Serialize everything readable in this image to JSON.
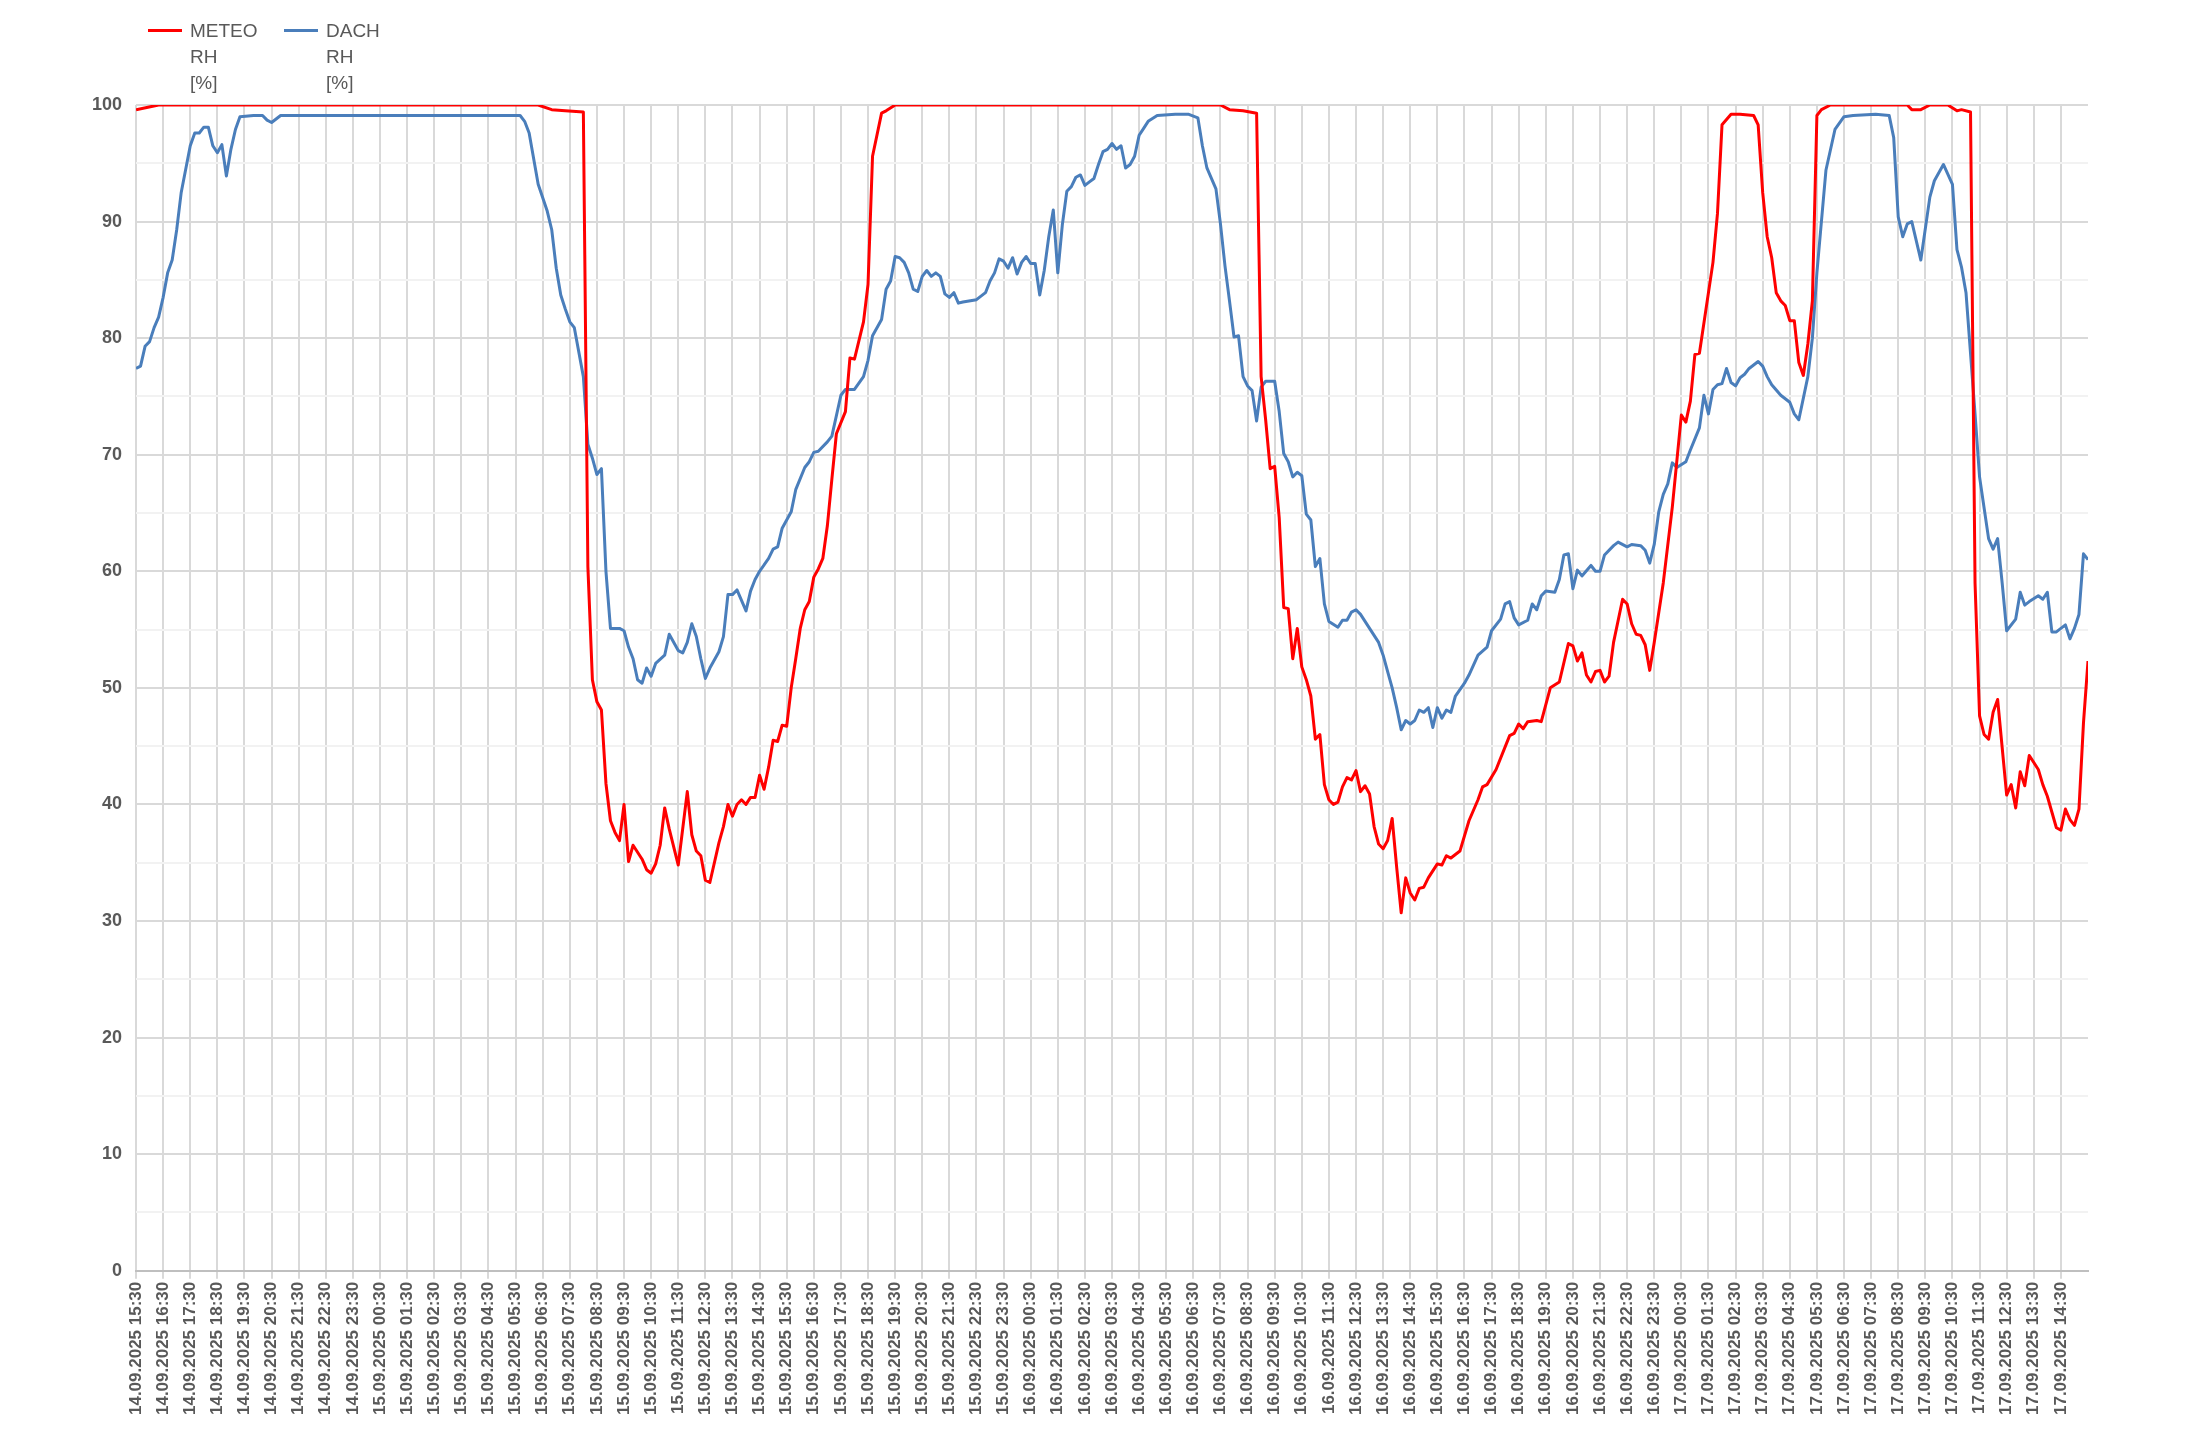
{
  "chart_data": {
    "type": "line",
    "legend": "top left",
    "grid": true,
    "xlim": [
      "2025-09-14T15:30",
      "2025-09-17T15:30"
    ],
    "xticks": [
      {
        "value": "2025-09-14T15:30",
        "label": "14.09.2025 15:30"
      },
      {
        "value": "2025-09-14T16:30",
        "label": "14.09.2025 16:30"
      },
      {
        "value": "2025-09-14T17:30",
        "label": "14.09.2025 17:30"
      },
      {
        "value": "2025-09-14T18:30",
        "label": "14.09.2025 18:30"
      },
      {
        "value": "2025-09-14T19:30",
        "label": "14.09.2025 19:30"
      },
      {
        "value": "2025-09-14T20:30",
        "label": "14.09.2025 20:30"
      },
      {
        "value": "2025-09-14T21:30",
        "label": "14.09.2025 21:30"
      },
      {
        "value": "2025-09-14T22:30",
        "label": "14.09.2025 22:30"
      },
      {
        "value": "2025-09-14T23:30",
        "label": "14.09.2025 23:30"
      },
      {
        "value": "2025-09-15T00:30",
        "label": "15.09.2025 00:30"
      },
      {
        "value": "2025-09-15T01:30",
        "label": "15.09.2025 01:30"
      },
      {
        "value": "2025-09-15T02:30",
        "label": "15.09.2025 02:30"
      },
      {
        "value": "2025-09-15T03:30",
        "label": "15.09.2025 03:30"
      },
      {
        "value": "2025-09-15T04:30",
        "label": "15.09.2025 04:30"
      },
      {
        "value": "2025-09-15T05:30",
        "label": "15.09.2025 05:30"
      },
      {
        "value": "2025-09-15T06:30",
        "label": "15.09.2025 06:30"
      },
      {
        "value": "2025-09-15T07:30",
        "label": "15.09.2025 07:30"
      },
      {
        "value": "2025-09-15T08:30",
        "label": "15.09.2025 08:30"
      },
      {
        "value": "2025-09-15T09:30",
        "label": "15.09.2025 09:30"
      },
      {
        "value": "2025-09-15T10:30",
        "label": "15.09.2025 10:30"
      },
      {
        "value": "2025-09-15T11:30",
        "label": "15.09.2025 11:30"
      },
      {
        "value": "2025-09-15T12:30",
        "label": "15.09.2025 12:30"
      },
      {
        "value": "2025-09-15T13:30",
        "label": "15.09.2025 13:30"
      },
      {
        "value": "2025-09-15T14:30",
        "label": "15.09.2025 14:30"
      },
      {
        "value": "2025-09-15T15:30",
        "label": "15.09.2025 15:30"
      },
      {
        "value": "2025-09-15T16:30",
        "label": "15.09.2025 16:30"
      },
      {
        "value": "2025-09-15T17:30",
        "label": "15.09.2025 17:30"
      },
      {
        "value": "2025-09-15T18:30",
        "label": "15.09.2025 18:30"
      },
      {
        "value": "2025-09-15T19:30",
        "label": "15.09.2025 19:30"
      },
      {
        "value": "2025-09-15T20:30",
        "label": "15.09.2025 20:30"
      },
      {
        "value": "2025-09-15T21:30",
        "label": "15.09.2025 21:30"
      },
      {
        "value": "2025-09-15T22:30",
        "label": "15.09.2025 22:30"
      },
      {
        "value": "2025-09-15T23:30",
        "label": "15.09.2025 23:30"
      },
      {
        "value": "2025-09-16T00:30",
        "label": "16.09.2025 00:30"
      },
      {
        "value": "2025-09-16T01:30",
        "label": "16.09.2025 01:30"
      },
      {
        "value": "2025-09-16T02:30",
        "label": "16.09.2025 02:30"
      },
      {
        "value": "2025-09-16T03:30",
        "label": "16.09.2025 03:30"
      },
      {
        "value": "2025-09-16T04:30",
        "label": "16.09.2025 04:30"
      },
      {
        "value": "2025-09-16T05:30",
        "label": "16.09.2025 05:30"
      },
      {
        "value": "2025-09-16T06:30",
        "label": "16.09.2025 06:30"
      },
      {
        "value": "2025-09-16T07:30",
        "label": "16.09.2025 07:30"
      },
      {
        "value": "2025-09-16T08:30",
        "label": "16.09.2025 08:30"
      },
      {
        "value": "2025-09-16T09:30",
        "label": "16.09.2025 09:30"
      },
      {
        "value": "2025-09-16T10:30",
        "label": "16.09.2025 10:30"
      },
      {
        "value": "2025-09-16T11:30",
        "label": "16.09.2025 11:30"
      },
      {
        "value": "2025-09-16T12:30",
        "label": "16.09.2025 12:30"
      },
      {
        "value": "2025-09-16T13:30",
        "label": "16.09.2025 13:30"
      },
      {
        "value": "2025-09-16T14:30",
        "label": "16.09.2025 14:30"
      },
      {
        "value": "2025-09-16T15:30",
        "label": "16.09.2025 15:30"
      },
      {
        "value": "2025-09-16T16:30",
        "label": "16.09.2025 16:30"
      },
      {
        "value": "2025-09-16T17:30",
        "label": "16.09.2025 17:30"
      },
      {
        "value": "2025-09-16T18:30",
        "label": "16.09.2025 18:30"
      },
      {
        "value": "2025-09-16T19:30",
        "label": "16.09.2025 19:30"
      },
      {
        "value": "2025-09-16T20:30",
        "label": "16.09.2025 20:30"
      },
      {
        "value": "2025-09-16T21:30",
        "label": "16.09.2025 21:30"
      },
      {
        "value": "2025-09-16T22:30",
        "label": "16.09.2025 22:30"
      },
      {
        "value": "2025-09-16T23:30",
        "label": "16.09.2025 23:30"
      },
      {
        "value": "2025-09-17T00:30",
        "label": "17.09.2025 00:30"
      },
      {
        "value": "2025-09-17T01:30",
        "label": "17.09.2025 01:30"
      },
      {
        "value": "2025-09-17T02:30",
        "label": "17.09.2025 02:30"
      },
      {
        "value": "2025-09-17T03:30",
        "label": "17.09.2025 03:30"
      },
      {
        "value": "2025-09-17T04:30",
        "label": "17.09.2025 04:30"
      },
      {
        "value": "2025-09-17T05:30",
        "label": "17.09.2025 05:30"
      },
      {
        "value": "2025-09-17T06:30",
        "label": "17.09.2025 06:30"
      },
      {
        "value": "2025-09-17T07:30",
        "label": "17.09.2025 07:30"
      },
      {
        "value": "2025-09-17T08:30",
        "label": "17.09.2025 08:30"
      },
      {
        "value": "2025-09-17T09:30",
        "label": "17.09.2025 09:30"
      },
      {
        "value": "2025-09-17T10:30",
        "label": "17.09.2025 10:30"
      },
      {
        "value": "2025-09-17T11:30",
        "label": "17.09.2025 11:30"
      },
      {
        "value": "2025-09-17T12:30",
        "label": "17.09.2025 12:30"
      },
      {
        "value": "2025-09-17T13:30",
        "label": "17.09.2025 13:30"
      },
      {
        "value": "2025-09-17T14:30",
        "label": "17.09.2025 14:30"
      }
    ],
    "ylim": [
      0,
      100
    ],
    "yticks": [
      0,
      {
        "value": 5,
        "label": null
      },
      10,
      {
        "value": 15,
        "label": null
      },
      20,
      {
        "value": 25,
        "label": null
      },
      30,
      {
        "value": 35,
        "label": null
      },
      40,
      {
        "value": 45,
        "label": null
      },
      50,
      {
        "value": 55,
        "label": null
      },
      60,
      {
        "value": 65,
        "label": null
      },
      70,
      {
        "value": 75,
        "label": null
      },
      80,
      {
        "value": 85,
        "label": null
      },
      90,
      {
        "value": 95,
        "label": null
      },
      100
    ],
    "series": [
      {
        "name": "METEO RH [%]",
        "color": "#ff0000",
        "x": [
          "2025-09-14T15:30",
          "2025-09-14T16:20",
          "2025-09-15T06:20",
          "2025-09-15T06:50",
          "2025-09-15T07:20",
          "2025-09-15T08:00",
          "2025-09-15T08:10",
          "2025-09-15T08:20",
          "2025-09-15T08:30",
          "2025-09-15T08:40",
          "2025-09-15T08:50",
          "2025-09-15T09:00",
          "2025-09-15T09:10",
          "2025-09-15T09:20",
          "2025-09-15T09:30",
          "2025-09-15T09:40",
          "2025-09-15T09:50",
          "2025-09-15T10:10",
          "2025-09-15T10:20",
          "2025-09-15T10:30",
          "2025-09-15T10:40",
          "2025-09-15T10:50",
          "2025-09-15T11:00",
          "2025-09-15T11:10",
          "2025-09-15T11:30",
          "2025-09-15T11:50",
          "2025-09-15T12:00",
          "2025-09-15T12:10",
          "2025-09-15T12:20",
          "2025-09-15T12:30",
          "2025-09-15T12:40",
          "2025-09-15T13:00",
          "2025-09-15T13:10",
          "2025-09-15T13:20",
          "2025-09-15T13:30",
          "2025-09-15T13:40",
          "2025-09-15T13:50",
          "2025-09-15T14:00",
          "2025-09-15T14:10",
          "2025-09-15T14:20",
          "2025-09-15T14:30",
          "2025-09-15T14:40",
          "2025-09-15T14:50",
          "2025-09-15T15:00",
          "2025-09-15T15:10",
          "2025-09-15T15:20",
          "2025-09-15T15:30",
          "2025-09-15T15:40",
          "2025-09-15T15:50",
          "2025-09-15T16:00",
          "2025-09-15T16:10",
          "2025-09-15T16:20",
          "2025-09-15T16:30",
          "2025-09-15T16:40",
          "2025-09-15T16:50",
          "2025-09-15T17:00",
          "2025-09-15T17:10",
          "2025-09-15T17:20",
          "2025-09-15T17:40",
          "2025-09-15T17:50",
          "2025-09-15T18:00",
          "2025-09-15T18:20",
          "2025-09-15T18:30",
          "2025-09-15T18:40",
          "2025-09-15T19:00",
          "2025-09-15T19:10",
          "2025-09-15T19:30",
          "2025-09-16T07:30",
          "2025-09-16T07:50",
          "2025-09-16T08:20",
          "2025-09-16T08:50",
          "2025-09-16T09:00",
          "2025-09-16T09:10",
          "2025-09-16T09:20",
          "2025-09-16T09:30",
          "2025-09-16T09:40",
          "2025-09-16T09:50",
          "2025-09-16T10:00",
          "2025-09-16T10:10",
          "2025-09-16T10:20",
          "2025-09-16T10:30",
          "2025-09-16T10:40",
          "2025-09-16T10:50",
          "2025-09-16T11:00",
          "2025-09-16T11:10",
          "2025-09-16T11:20",
          "2025-09-16T11:30",
          "2025-09-16T11:40",
          "2025-09-16T11:50",
          "2025-09-16T12:00",
          "2025-09-16T12:10",
          "2025-09-16T12:20",
          "2025-09-16T12:30",
          "2025-09-16T12:40",
          "2025-09-16T12:50",
          "2025-09-16T13:00",
          "2025-09-16T13:10",
          "2025-09-16T13:20",
          "2025-09-16T13:30",
          "2025-09-16T13:40",
          "2025-09-16T13:50",
          "2025-09-16T14:00",
          "2025-09-16T14:10",
          "2025-09-16T14:20",
          "2025-09-16T14:30",
          "2025-09-16T14:40",
          "2025-09-16T14:50",
          "2025-09-16T15:00",
          "2025-09-16T15:10",
          "2025-09-16T15:30",
          "2025-09-16T15:40",
          "2025-09-16T15:50",
          "2025-09-16T16:00",
          "2025-09-16T16:20",
          "2025-09-16T16:40",
          "2025-09-16T17:00",
          "2025-09-16T17:10",
          "2025-09-16T17:20",
          "2025-09-16T17:40",
          "2025-09-16T18:10",
          "2025-09-16T18:20",
          "2025-09-16T18:30",
          "2025-09-16T18:40",
          "2025-09-16T18:50",
          "2025-09-16T19:10",
          "2025-09-16T19:20",
          "2025-09-16T19:40",
          "2025-09-16T20:00",
          "2025-09-16T20:20",
          "2025-09-16T20:30",
          "2025-09-16T20:40",
          "2025-09-16T20:50",
          "2025-09-16T21:00",
          "2025-09-16T21:10",
          "2025-09-16T21:20",
          "2025-09-16T21:30",
          "2025-09-16T21:40",
          "2025-09-16T21:50",
          "2025-09-16T22:00",
          "2025-09-16T22:20",
          "2025-09-16T22:30",
          "2025-09-16T22:40",
          "2025-09-16T22:50",
          "2025-09-16T23:00",
          "2025-09-16T23:10",
          "2025-09-16T23:20",
          "2025-09-16T23:30",
          "2025-09-16T23:50",
          "2025-09-17T00:10",
          "2025-09-17T00:30",
          "2025-09-17T00:40",
          "2025-09-17T00:50",
          "2025-09-17T01:00",
          "2025-09-17T01:10",
          "2025-09-17T01:40",
          "2025-09-17T01:50",
          "2025-09-17T02:00",
          "2025-09-17T02:20",
          "2025-09-17T02:40",
          "2025-09-17T03:10",
          "2025-09-17T03:20",
          "2025-09-17T03:30",
          "2025-09-17T03:40",
          "2025-09-17T03:50",
          "2025-09-17T04:00",
          "2025-09-17T04:10",
          "2025-09-17T04:20",
          "2025-09-17T04:30",
          "2025-09-17T04:40",
          "2025-09-17T04:50",
          "2025-09-17T05:00",
          "2025-09-17T05:10",
          "2025-09-17T05:20",
          "2025-09-17T05:30",
          "2025-09-17T05:40",
          "2025-09-17T06:00",
          "2025-09-17T08:50",
          "2025-09-17T09:00",
          "2025-09-17T09:20",
          "2025-09-17T09:40",
          "2025-09-17T10:20",
          "2025-09-17T10:40",
          "2025-09-17T10:50",
          "2025-09-17T11:10",
          "2025-09-17T11:20",
          "2025-09-17T11:30",
          "2025-09-17T11:40",
          "2025-09-17T11:50",
          "2025-09-17T12:00",
          "2025-09-17T12:10",
          "2025-09-17T12:30",
          "2025-09-17T12:40",
          "2025-09-17T12:50",
          "2025-09-17T13:00",
          "2025-09-17T13:10",
          "2025-09-17T13:20",
          "2025-09-17T13:40",
          "2025-09-17T13:50",
          "2025-09-17T14:00",
          "2025-09-17T14:20",
          "2025-09-17T14:30",
          "2025-09-17T14:40",
          "2025-09-17T14:50",
          "2025-09-17T15:00",
          "2025-09-17T15:10",
          "2025-09-17T15:20",
          "2025-09-17T15:30"
        ],
        "values": [
          99.6,
          100,
          100,
          99.6,
          99.5,
          99.4,
          60.4,
          50.7,
          48.8,
          48.1,
          41.8,
          38.6,
          37.6,
          36.9,
          40,
          35.1,
          36.5,
          35.3,
          34.4,
          34.1,
          34.9,
          36.5,
          39.7,
          37.9,
          34.8,
          41.1,
          37.4,
          36,
          35.6,
          33.5,
          33.3,
          36.7,
          38.1,
          40,
          39,
          40,
          40.4,
          40,
          40.6,
          40.6,
          42.5,
          41.3,
          43.2,
          45.5,
          45.4,
          46.8,
          46.7,
          50,
          52.5,
          55.1,
          56.7,
          57.4,
          59.5,
          60.2,
          61.1,
          63.9,
          67.9,
          71.8,
          73.7,
          78.3,
          78.2,
          81.4,
          84.6,
          95.6,
          99.3,
          99.5,
          100,
          100,
          99.6,
          99.5,
          99.3,
          76.7,
          73,
          68.8,
          69,
          64.6,
          56.9,
          56.8,
          52.5,
          55.1,
          51.8,
          50.7,
          49.3,
          45.6,
          46,
          41.7,
          40.4,
          40,
          40.2,
          41.5,
          42.3,
          42.1,
          42.9,
          41.1,
          41.6,
          40.9,
          38.1,
          36.6,
          36.2,
          36.9,
          38.8,
          34.6,
          30.7,
          33.7,
          32.4,
          31.8,
          32.8,
          32.9,
          33.7,
          34.9,
          34.8,
          35.6,
          35.4,
          36,
          38.6,
          40.4,
          41.5,
          41.7,
          43,
          45.9,
          46.1,
          46.9,
          46.5,
          47.1,
          47.2,
          47.1,
          50,
          50.5,
          53.8,
          53.6,
          52.3,
          53,
          51.1,
          50.5,
          51.4,
          51.5,
          50.5,
          51,
          53.9,
          57.6,
          57.2,
          55.5,
          54.6,
          54.5,
          53.7,
          51.5,
          53.9,
          59,
          65.5,
          73.4,
          72.8,
          74.6,
          78.6,
          78.7,
          86.5,
          90.7,
          98.3,
          99.2,
          99.2,
          99.1,
          98.3,
          92.5,
          88.7,
          86.9,
          83.9,
          83.2,
          82.8,
          81.5,
          81.5,
          77.9,
          76.8,
          79.5,
          83.2,
          99.1,
          99.6,
          100,
          100,
          99.6,
          99.6,
          100,
          100,
          99.5,
          99.6,
          99.4,
          59,
          47.6,
          46,
          45.6,
          47.9,
          49,
          40.8,
          41.7,
          39.7,
          42.8,
          41.6,
          44.2,
          43,
          41.7,
          40.7,
          38,
          37.8,
          39.6,
          38.7,
          38.2,
          39.6,
          47,
          52.3
        ]
      },
      {
        "name": "DACH RH [%]",
        "color": "#4a7ebb",
        "x": [
          "2025-09-14T15:30",
          "2025-09-14T15:40",
          "2025-09-14T15:50",
          "2025-09-14T16:00",
          "2025-09-14T16:10",
          "2025-09-14T16:20",
          "2025-09-14T16:30",
          "2025-09-14T16:40",
          "2025-09-14T16:50",
          "2025-09-14T17:00",
          "2025-09-14T17:10",
          "2025-09-14T17:30",
          "2025-09-14T17:40",
          "2025-09-14T17:50",
          "2025-09-14T18:00",
          "2025-09-14T18:10",
          "2025-09-14T18:20",
          "2025-09-14T18:30",
          "2025-09-14T18:40",
          "2025-09-14T18:50",
          "2025-09-14T19:00",
          "2025-09-14T19:10",
          "2025-09-14T19:20",
          "2025-09-14T19:50",
          "2025-09-14T20:10",
          "2025-09-14T20:20",
          "2025-09-14T20:30",
          "2025-09-14T20:50",
          "2025-09-15T05:40",
          "2025-09-15T05:50",
          "2025-09-15T06:00",
          "2025-09-15T06:20",
          "2025-09-15T06:40",
          "2025-09-15T06:50",
          "2025-09-15T07:00",
          "2025-09-15T07:10",
          "2025-09-15T07:20",
          "2025-09-15T07:30",
          "2025-09-15T07:40",
          "2025-09-15T08:00",
          "2025-09-15T08:10",
          "2025-09-15T08:20",
          "2025-09-15T08:30",
          "2025-09-15T08:40",
          "2025-09-15T08:50",
          "2025-09-15T09:00",
          "2025-09-15T09:20",
          "2025-09-15T09:30",
          "2025-09-15T09:40",
          "2025-09-15T09:50",
          "2025-09-15T10:00",
          "2025-09-15T10:10",
          "2025-09-15T10:20",
          "2025-09-15T10:30",
          "2025-09-15T10:40",
          "2025-09-15T11:00",
          "2025-09-15T11:10",
          "2025-09-15T11:30",
          "2025-09-15T11:40",
          "2025-09-15T11:50",
          "2025-09-15T12:00",
          "2025-09-15T12:10",
          "2025-09-15T12:20",
          "2025-09-15T12:30",
          "2025-09-15T12:40",
          "2025-09-15T13:00",
          "2025-09-15T13:10",
          "2025-09-15T13:20",
          "2025-09-15T13:30",
          "2025-09-15T13:40",
          "2025-09-15T14:00",
          "2025-09-15T14:10",
          "2025-09-15T14:20",
          "2025-09-15T14:30",
          "2025-09-15T14:50",
          "2025-09-15T15:00",
          "2025-09-15T15:10",
          "2025-09-15T15:20",
          "2025-09-15T15:40",
          "2025-09-15T15:50",
          "2025-09-15T16:10",
          "2025-09-15T16:20",
          "2025-09-15T16:30",
          "2025-09-15T16:40",
          "2025-09-15T17:00",
          "2025-09-15T17:10",
          "2025-09-15T17:30",
          "2025-09-15T17:40",
          "2025-09-15T18:00",
          "2025-09-15T18:20",
          "2025-09-15T18:30",
          "2025-09-15T18:40",
          "2025-09-15T19:00",
          "2025-09-15T19:10",
          "2025-09-15T19:20",
          "2025-09-15T19:30",
          "2025-09-15T19:40",
          "2025-09-15T19:50",
          "2025-09-15T20:00",
          "2025-09-15T20:10",
          "2025-09-15T20:20",
          "2025-09-15T20:30",
          "2025-09-15T20:40",
          "2025-09-15T20:50",
          "2025-09-15T21:00",
          "2025-09-15T21:10",
          "2025-09-15T21:20",
          "2025-09-15T21:30",
          "2025-09-15T21:40",
          "2025-09-15T21:50",
          "2025-09-15T22:00",
          "2025-09-15T22:30",
          "2025-09-15T22:50",
          "2025-09-15T23:00",
          "2025-09-15T23:10",
          "2025-09-15T23:20",
          "2025-09-15T23:30",
          "2025-09-15T23:40",
          "2025-09-15T23:50",
          "2025-09-16T00:00",
          "2025-09-16T00:10",
          "2025-09-16T00:20",
          "2025-09-16T00:30",
          "2025-09-16T00:40",
          "2025-09-16T00:50",
          "2025-09-16T01:00",
          "2025-09-16T01:10",
          "2025-09-16T01:20",
          "2025-09-16T01:30",
          "2025-09-16T01:40",
          "2025-09-16T01:50",
          "2025-09-16T02:00",
          "2025-09-16T02:10",
          "2025-09-16T02:20",
          "2025-09-16T02:30",
          "2025-09-16T02:40",
          "2025-09-16T02:50",
          "2025-09-16T03:00",
          "2025-09-16T03:10",
          "2025-09-16T03:20",
          "2025-09-16T03:30",
          "2025-09-16T03:40",
          "2025-09-16T03:50",
          "2025-09-16T04:00",
          "2025-09-16T04:10",
          "2025-09-16T04:20",
          "2025-09-16T04:30",
          "2025-09-16T04:40",
          "2025-09-16T04:50",
          "2025-09-16T05:10",
          "2025-09-16T05:50",
          "2025-09-16T06:20",
          "2025-09-16T06:40",
          "2025-09-16T06:50",
          "2025-09-16T07:00",
          "2025-09-16T07:20",
          "2025-09-16T07:30",
          "2025-09-16T07:40",
          "2025-09-16T07:50",
          "2025-09-16T08:00",
          "2025-09-16T08:10",
          "2025-09-16T08:20",
          "2025-09-16T08:30",
          "2025-09-16T08:40",
          "2025-09-16T08:50",
          "2025-09-16T09:00",
          "2025-09-16T09:10",
          "2025-09-16T09:30",
          "2025-09-16T09:40",
          "2025-09-16T09:50",
          "2025-09-16T10:00",
          "2025-09-16T10:10",
          "2025-09-16T10:20",
          "2025-09-16T10:30",
          "2025-09-16T10:40",
          "2025-09-16T10:50",
          "2025-09-16T11:00",
          "2025-09-16T11:10",
          "2025-09-16T11:20",
          "2025-09-16T11:30",
          "2025-09-16T11:50",
          "2025-09-16T12:00",
          "2025-09-16T12:10",
          "2025-09-16T12:20",
          "2025-09-16T12:30",
          "2025-09-16T12:40",
          "2025-09-16T13:00",
          "2025-09-16T13:20",
          "2025-09-16T13:30",
          "2025-09-16T13:40",
          "2025-09-16T13:50",
          "2025-09-16T14:00",
          "2025-09-16T14:10",
          "2025-09-16T14:20",
          "2025-09-16T14:30",
          "2025-09-16T14:40",
          "2025-09-16T14:50",
          "2025-09-16T15:00",
          "2025-09-16T15:10",
          "2025-09-16T15:20",
          "2025-09-16T15:30",
          "2025-09-16T15:40",
          "2025-09-16T15:50",
          "2025-09-16T16:00",
          "2025-09-16T16:10",
          "2025-09-16T16:30",
          "2025-09-16T16:40",
          "2025-09-16T17:00",
          "2025-09-16T17:20",
          "2025-09-16T17:30",
          "2025-09-16T17:50",
          "2025-09-16T18:00",
          "2025-09-16T18:10",
          "2025-09-16T18:20",
          "2025-09-16T18:30",
          "2025-09-16T18:50",
          "2025-09-16T19:00",
          "2025-09-16T19:10",
          "2025-09-16T19:20",
          "2025-09-16T19:30",
          "2025-09-16T19:50",
          "2025-09-16T20:00",
          "2025-09-16T20:10",
          "2025-09-16T20:20",
          "2025-09-16T20:30",
          "2025-09-16T20:40",
          "2025-09-16T20:50",
          "2025-09-16T21:10",
          "2025-09-16T21:20",
          "2025-09-16T21:30",
          "2025-09-16T21:40",
          "2025-09-16T22:00",
          "2025-09-16T22:10",
          "2025-09-16T22:30",
          "2025-09-16T22:40",
          "2025-09-16T23:00",
          "2025-09-16T23:10",
          "2025-09-16T23:20",
          "2025-09-16T23:30",
          "2025-09-16T23:40",
          "2025-09-16T23:50",
          "2025-09-17T00:00",
          "2025-09-17T00:10",
          "2025-09-17T00:20",
          "2025-09-17T00:40",
          "2025-09-17T00:50",
          "2025-09-17T01:10",
          "2025-09-17T01:20",
          "2025-09-17T01:30",
          "2025-09-17T01:40",
          "2025-09-17T01:50",
          "2025-09-17T02:00",
          "2025-09-17T02:10",
          "2025-09-17T02:20",
          "2025-09-17T02:30",
          "2025-09-17T02:40",
          "2025-09-17T02:50",
          "2025-09-17T03:00",
          "2025-09-17T03:20",
          "2025-09-17T03:30",
          "2025-09-17T03:40",
          "2025-09-17T03:50",
          "2025-09-17T04:10",
          "2025-09-17T04:30",
          "2025-09-17T04:40",
          "2025-09-17T04:50",
          "2025-09-17T05:10",
          "2025-09-17T05:20",
          "2025-09-17T05:30",
          "2025-09-17T05:50",
          "2025-09-17T06:10",
          "2025-09-17T06:30",
          "2025-09-17T06:50",
          "2025-09-17T07:40",
          "2025-09-17T08:10",
          "2025-09-17T08:20",
          "2025-09-17T08:30",
          "2025-09-17T08:40",
          "2025-09-17T08:50",
          "2025-09-17T09:00",
          "2025-09-17T09:20",
          "2025-09-17T09:40",
          "2025-09-17T09:50",
          "2025-09-17T10:10",
          "2025-09-17T10:30",
          "2025-09-17T10:40",
          "2025-09-17T10:50",
          "2025-09-17T11:00",
          "2025-09-17T11:20",
          "2025-09-17T11:30",
          "2025-09-17T11:50",
          "2025-09-17T12:00",
          "2025-09-17T12:10",
          "2025-09-17T12:20",
          "2025-09-17T12:30",
          "2025-09-17T12:50",
          "2025-09-17T13:00",
          "2025-09-17T13:10",
          "2025-09-17T13:20",
          "2025-09-17T13:40",
          "2025-09-17T13:50",
          "2025-09-17T14:00",
          "2025-09-17T14:10",
          "2025-09-17T14:20",
          "2025-09-17T14:40",
          "2025-09-17T14:50",
          "2025-09-17T15:00",
          "2025-09-17T15:10",
          "2025-09-17T15:20",
          "2025-09-17T15:30"
        ],
        "values": [
          77.4,
          77.6,
          79.3,
          79.7,
          80.9,
          81.8,
          83.5,
          85.6,
          86.7,
          89.3,
          92.5,
          96.5,
          97.6,
          97.6,
          98.1,
          98.1,
          96.5,
          95.9,
          96.6,
          93.9,
          96.2,
          97.9,
          99,
          99.1,
          99.1,
          98.7,
          98.5,
          99.1,
          99.1,
          98.6,
          97.6,
          93.2,
          90.9,
          89.3,
          86,
          83.7,
          82.5,
          81.4,
          80.9,
          76.7,
          70.9,
          69.7,
          68.3,
          68.8,
          60,
          55.1,
          55.1,
          54.9,
          53.5,
          52.5,
          50.7,
          50.4,
          51.7,
          51,
          52.1,
          52.8,
          54.6,
          53.2,
          53,
          53.9,
          55.5,
          54.4,
          52.5,
          50.8,
          51.7,
          53.1,
          54.4,
          58,
          58,
          58.4,
          56.6,
          58.3,
          59.3,
          60,
          61.1,
          61.9,
          62.1,
          63.7,
          65.1,
          67,
          68.9,
          69.4,
          70.2,
          70.3,
          71.1,
          71.6,
          75.1,
          75.6,
          75.6,
          76.7,
          78.1,
          80.2,
          81.6,
          84.2,
          84.9,
          87,
          86.9,
          86.5,
          85.6,
          84.2,
          84,
          85.3,
          85.8,
          85.3,
          85.6,
          85.3,
          83.8,
          83.5,
          83.9,
          83,
          83.1,
          83.3,
          83.9,
          84.9,
          85.6,
          86.8,
          86.6,
          86,
          86.9,
          85.5,
          86.5,
          87,
          86.4,
          86.4,
          83.7,
          85.8,
          88.7,
          91,
          85.6,
          89.7,
          92.6,
          93,
          93.8,
          94,
          93.1,
          93.4,
          93.7,
          94.9,
          96,
          96.2,
          96.7,
          96.2,
          96.5,
          94.6,
          94.9,
          95.6,
          97.4,
          98,
          98.6,
          99.1,
          99.2,
          99.2,
          98.9,
          96.5,
          94.6,
          92.8,
          89.8,
          86.2,
          83.2,
          80.1,
          80.2,
          76.7,
          75.9,
          75.5,
          72.9,
          75.8,
          76.3,
          76.3,
          73.7,
          70.1,
          69.4,
          68.1,
          68.5,
          68.2,
          64.9,
          64.4,
          60.4,
          61.1,
          57.2,
          55.7,
          55.2,
          55.8,
          55.8,
          56.5,
          56.7,
          56.3,
          55.1,
          53.9,
          52.8,
          51.4,
          50,
          48.3,
          46.4,
          47.2,
          46.9,
          47.2,
          48.1,
          47.9,
          48.3,
          46.6,
          48.3,
          47.4,
          48.1,
          47.9,
          49.3,
          50.4,
          51.1,
          52.8,
          53.5,
          54.9,
          55.9,
          57.2,
          57.4,
          56,
          55.4,
          55.8,
          57.2,
          56.7,
          57.9,
          58.3,
          58.2,
          59.3,
          61.4,
          61.5,
          58.5,
          60.1,
          59.6,
          60.5,
          60,
          60,
          61.4,
          62.2,
          62.5,
          62.1,
          62.3,
          62.2,
          61.8,
          60.7,
          62.3,
          65.1,
          66.6,
          67.5,
          69.3,
          68.9,
          69.4,
          70.4,
          72.3,
          75.1,
          73.5,
          75.6,
          76,
          76.1,
          77.4,
          76.2,
          75.9,
          76.6,
          76.9,
          77.4,
          78,
          77.6,
          76.7,
          76,
          75.1,
          74.5,
          73.5,
          73,
          76.7,
          80,
          85.6,
          94.4,
          97.9,
          99,
          99.1,
          99.2,
          99.1,
          97.2,
          90.4,
          88.7,
          89.8,
          90,
          86.7,
          92.1,
          93.5,
          94.9,
          93.2,
          87.6,
          86.1,
          83.9,
          73.5,
          68.1,
          62.8,
          61.9,
          62.8,
          59,
          54.9,
          55.9,
          58.2,
          57.1,
          57.4,
          57.9,
          57.6,
          58.2,
          54.8,
          54.8,
          55.4,
          54.2,
          55.1,
          56.3,
          61.5,
          61
        ]
      }
    ]
  }
}
